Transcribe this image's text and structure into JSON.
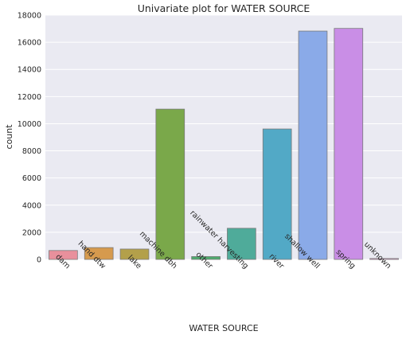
{
  "chart_data": {
    "type": "bar",
    "title": "Univariate plot for WATER SOURCE",
    "xlabel": "WATER SOURCE",
    "ylabel": "count",
    "ylim": [
      0,
      18000
    ],
    "yticks": [
      0,
      2000,
      4000,
      6000,
      8000,
      10000,
      12000,
      14000,
      16000,
      18000
    ],
    "grid": true,
    "legend": "none",
    "categories": [
      "dam",
      "hand dtw",
      "lake",
      "machine dbh",
      "other",
      "rainwater harvesting",
      "river",
      "shallow well",
      "spring",
      "unknown"
    ],
    "values": [
      656,
      874,
      765,
      11075,
      212,
      2295,
      9612,
      16824,
      17021,
      66
    ],
    "colors": [
      "#e8909c",
      "#d69a4e",
      "#b3a04a",
      "#7aa84a",
      "#4fab6e",
      "#4fab9a",
      "#52a9c6",
      "#8aaae8",
      "#c98ee6",
      "#e68ad0"
    ]
  }
}
